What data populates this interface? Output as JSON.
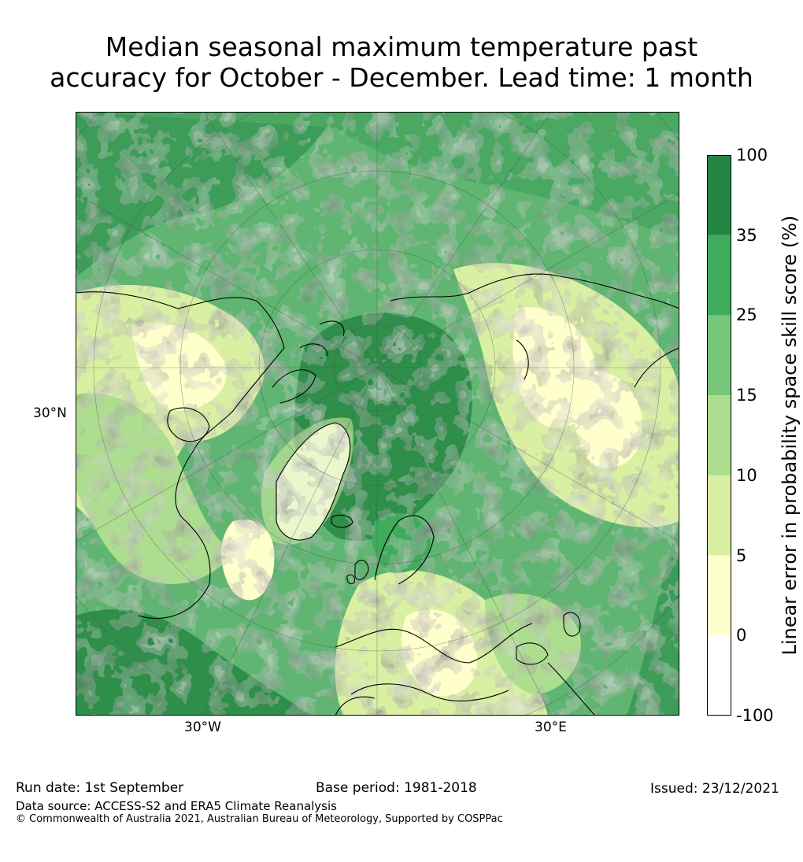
{
  "title_line1": "Median seasonal maximum temperature past",
  "title_line2": "accuracy for October - December. Lead time: 1 month",
  "map": {
    "labels": {
      "lat_30n": "30°N",
      "lon_30w": "30°W",
      "lon_30e": "30°E"
    },
    "colors": {
      "ocean_background": "#5fb571",
      "class_0_5": "#ffffcc",
      "class_5_10": "#d9f0a3",
      "class_10_15": "#addd8e",
      "class_15_25": "#78c679",
      "class_25_35": "#41ab5d",
      "class_35_100": "#238443",
      "below_0": "#ffffff"
    }
  },
  "colorbar": {
    "title": "Linear error in probability space skill score (%)",
    "ticks": [
      "100",
      "35",
      "25",
      "15",
      "10",
      "5",
      "0",
      "-100"
    ],
    "classes": [
      {
        "from": 35,
        "to": 100,
        "color": "#238443"
      },
      {
        "from": 25,
        "to": 35,
        "color": "#41ab5d"
      },
      {
        "from": 15,
        "to": 25,
        "color": "#78c679"
      },
      {
        "from": 10,
        "to": 15,
        "color": "#addd8e"
      },
      {
        "from": 5,
        "to": 10,
        "color": "#d9f0a3"
      },
      {
        "from": 0,
        "to": 5,
        "color": "#ffffcc"
      },
      {
        "from": -100,
        "to": 0,
        "color": "#ffffff"
      }
    ]
  },
  "footer": {
    "run_date": "Run date: 1st September",
    "base_period": "Base period: 1981-2018",
    "issued": "Issued: 23/12/2021",
    "data_source": "Data source: ACCESS-S2 and ERA5 Climate Reanalysis",
    "copyright": "© Commonwealth of Australia 2021, Australian Bureau of Meteorology, Supported by COSPPac"
  }
}
